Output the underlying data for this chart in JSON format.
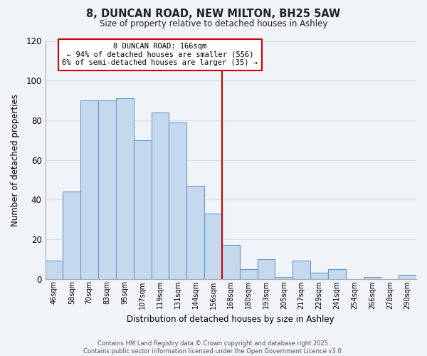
{
  "title": "8, DUNCAN ROAD, NEW MILTON, BH25 5AW",
  "subtitle": "Size of property relative to detached houses in Ashley",
  "xlabel": "Distribution of detached houses by size in Ashley",
  "ylabel": "Number of detached properties",
  "bar_labels": [
    "46sqm",
    "58sqm",
    "70sqm",
    "83sqm",
    "95sqm",
    "107sqm",
    "119sqm",
    "131sqm",
    "144sqm",
    "156sqm",
    "168sqm",
    "180sqm",
    "193sqm",
    "205sqm",
    "217sqm",
    "229sqm",
    "241sqm",
    "254sqm",
    "266sqm",
    "278sqm",
    "290sqm"
  ],
  "bar_values": [
    9,
    44,
    90,
    90,
    91,
    70,
    84,
    79,
    47,
    33,
    17,
    5,
    10,
    1,
    9,
    3,
    5,
    0,
    1,
    0,
    2
  ],
  "bar_color": "#c5d9ee",
  "bar_edge_color": "#6699cc",
  "ylim": [
    0,
    120
  ],
  "yticks": [
    0,
    20,
    40,
    60,
    80,
    100,
    120
  ],
  "property_line_x": 10,
  "property_label": "8 DUNCAN ROAD: 166sqm",
  "property_stat1": "← 94% of detached houses are smaller (556)",
  "property_stat2": "6% of semi-detached houses are larger (35) →",
  "red_line_color": "#cc0000",
  "footer1": "Contains HM Land Registry data © Crown copyright and database right 2025.",
  "footer2": "Contains public sector information licensed under the Open Government Licence v3.0.",
  "background_color": "#f0f4f8",
  "grid_color": "#d0dde8"
}
